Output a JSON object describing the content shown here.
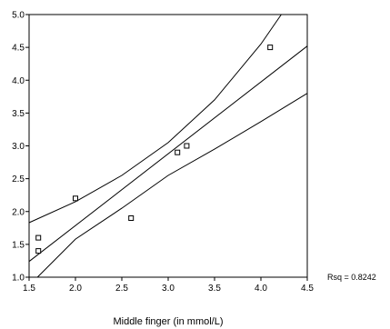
{
  "chart_data": {
    "type": "scatter",
    "title": "",
    "xlabel": "Middle finger (in mmol/L)",
    "ylabel": "",
    "xlim": [
      1.5,
      4.5
    ],
    "ylim": [
      1.0,
      5.0
    ],
    "x_ticks": [
      "1.5",
      "2.0",
      "2.5",
      "3.0",
      "3.5",
      "4.0",
      "4.5"
    ],
    "y_ticks": [
      "1.0",
      "1.5",
      "2.0",
      "2.5",
      "3.0",
      "3.5",
      "4.0",
      "4.5",
      "5.0"
    ],
    "grid": false,
    "points": [
      {
        "x": 1.6,
        "y": 1.6
      },
      {
        "x": 1.6,
        "y": 1.4
      },
      {
        "x": 2.0,
        "y": 2.2
      },
      {
        "x": 2.6,
        "y": 1.9
      },
      {
        "x": 3.1,
        "y": 2.9
      },
      {
        "x": 3.2,
        "y": 3.0
      },
      {
        "x": 4.1,
        "y": 4.5
      }
    ],
    "fit_line": {
      "x": [
        1.5,
        4.5
      ],
      "y": [
        1.24,
        4.52
      ]
    },
    "upper_band": {
      "x": [
        1.5,
        2.0,
        2.5,
        3.0,
        3.5,
        4.0,
        4.22
      ],
      "y": [
        1.83,
        2.15,
        2.55,
        3.05,
        3.7,
        4.55,
        5.0
      ]
    },
    "lower_band": {
      "x": [
        1.59,
        2.0,
        2.5,
        3.0,
        3.5,
        4.0,
        4.5
      ],
      "y": [
        1.0,
        1.58,
        2.05,
        2.55,
        2.95,
        3.37,
        3.8
      ]
    },
    "annotation": "Rsq = 0.8242"
  }
}
